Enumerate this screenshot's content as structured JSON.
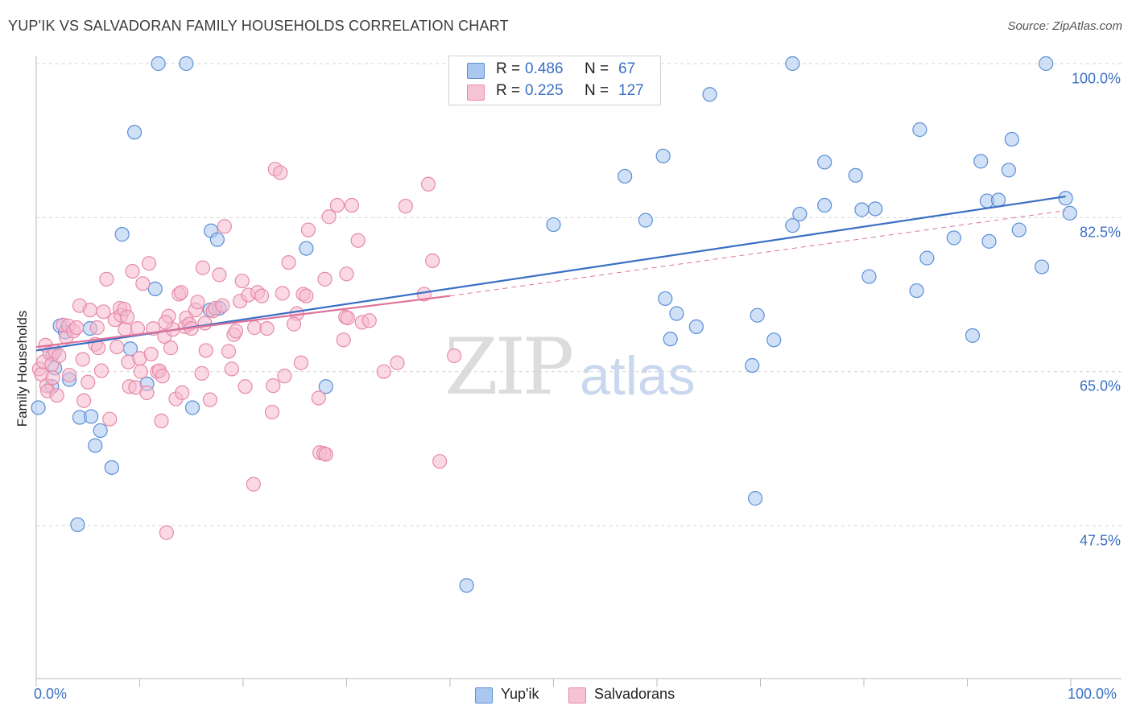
{
  "title": "YUP'IK VS SALVADORAN FAMILY HOUSEHOLDS CORRELATION CHART",
  "source": "Source: ZipAtlas.com",
  "watermark": {
    "zip": "ZIP",
    "atlas": "atlas"
  },
  "colors": {
    "blue_fill": "#a9c7ef",
    "blue_stroke": "#5b8fd6",
    "blue_line": "#3a70c4",
    "pink_fill": "#f6b9cd",
    "pink_stroke": "#e68aa8",
    "pink_line": "#e0729a",
    "grid": "#d5d5d5",
    "tick_text": "#3a70c4"
  },
  "legend": {
    "rows": [
      {
        "r_label": "R =",
        "r_value": "0.486",
        "n_label": "N =",
        "n_value": "67"
      },
      {
        "r_label": "R =",
        "r_value": "0.225",
        "n_label": "N =",
        "n_value": "127"
      }
    ]
  },
  "bottom_legend": {
    "items": [
      "Yup'ik",
      "Salvadorans"
    ]
  },
  "chart_data": {
    "type": "scatter",
    "title": "YUP'IK VS SALVADORAN FAMILY HOUSEHOLDS CORRELATION CHART",
    "xlabel": "",
    "ylabel": "Family Households",
    "xlim": [
      0,
      100
    ],
    "ylim": [
      32,
      104
    ],
    "x_tick_labels": [
      "0.0%",
      "100.0%"
    ],
    "y_ticks": [
      47.5,
      65.0,
      82.5,
      100.0
    ],
    "y_tick_labels": [
      "47.5%",
      "65.0%",
      "82.5%",
      "100.0%"
    ],
    "grid": true,
    "legend_position": "top-center",
    "series": [
      {
        "name": "Yup'ik",
        "r": 0.486,
        "n": 67,
        "trend": {
          "x": [
            0,
            99.5
          ],
          "y": [
            67.4,
            84.9
          ]
        },
        "points": [
          [
            0.2,
            60.9
          ],
          [
            1.5,
            63.3
          ],
          [
            1.6,
            67.0
          ],
          [
            1.8,
            65.4
          ],
          [
            2.3,
            70.2
          ],
          [
            2.8,
            69.5
          ],
          [
            3.2,
            64.1
          ],
          [
            4.0,
            47.6
          ],
          [
            4.2,
            59.8
          ],
          [
            5.2,
            69.9
          ],
          [
            5.3,
            59.9
          ],
          [
            5.7,
            56.6
          ],
          [
            6.2,
            58.3
          ],
          [
            7.3,
            54.1
          ],
          [
            8.3,
            80.6
          ],
          [
            9.1,
            67.6
          ],
          [
            9.5,
            92.2
          ],
          [
            10.7,
            63.6
          ],
          [
            11.5,
            74.4
          ],
          [
            11.8,
            100.0
          ],
          [
            14.5,
            100.0
          ],
          [
            15.1,
            60.9
          ],
          [
            16.8,
            72.0
          ],
          [
            16.9,
            81.0
          ],
          [
            17.5,
            80.0
          ],
          [
            17.7,
            72.2
          ],
          [
            26.1,
            79.0
          ],
          [
            28.0,
            63.3
          ],
          [
            41.6,
            40.7
          ],
          [
            50.0,
            81.7
          ],
          [
            56.9,
            87.2
          ],
          [
            58.9,
            82.2
          ],
          [
            60.6,
            89.5
          ],
          [
            60.8,
            73.3
          ],
          [
            61.3,
            68.7
          ],
          [
            61.9,
            71.6
          ],
          [
            63.8,
            70.1
          ],
          [
            65.1,
            96.5
          ],
          [
            69.2,
            65.7
          ],
          [
            69.5,
            50.6
          ],
          [
            69.7,
            71.4
          ],
          [
            71.3,
            68.6
          ],
          [
            73.1,
            100.0
          ],
          [
            73.1,
            81.6
          ],
          [
            73.8,
            82.9
          ],
          [
            76.2,
            88.8
          ],
          [
            76.2,
            83.9
          ],
          [
            79.2,
            87.3
          ],
          [
            79.8,
            83.4
          ],
          [
            80.5,
            75.8
          ],
          [
            81.1,
            83.5
          ],
          [
            85.1,
            74.2
          ],
          [
            85.4,
            92.5
          ],
          [
            86.1,
            77.9
          ],
          [
            88.7,
            80.2
          ],
          [
            90.5,
            69.1
          ],
          [
            91.3,
            88.9
          ],
          [
            91.9,
            84.4
          ],
          [
            92.1,
            79.8
          ],
          [
            93.0,
            84.5
          ],
          [
            94.0,
            87.9
          ],
          [
            94.3,
            91.4
          ],
          [
            95.0,
            81.1
          ],
          [
            97.2,
            76.9
          ],
          [
            97.6,
            100.0
          ],
          [
            99.5,
            84.7
          ],
          [
            99.9,
            83.0
          ]
        ]
      },
      {
        "name": "Salvadorans",
        "r": 0.225,
        "n": 127,
        "trend": {
          "x": [
            0,
            40
          ],
          "y": [
            67.8,
            73.6
          ]
        },
        "trend_dashed": {
          "x": [
            40,
            99.5
          ],
          "y": [
            73.6,
            83.3
          ]
        },
        "points": [
          [
            0.3,
            65.3
          ],
          [
            0.5,
            64.7
          ],
          [
            0.7,
            66.1
          ],
          [
            0.9,
            68.0
          ],
          [
            1.0,
            63.4
          ],
          [
            1.1,
            62.8
          ],
          [
            1.3,
            67.1
          ],
          [
            1.5,
            65.8
          ],
          [
            1.6,
            64.3
          ],
          [
            1.8,
            67.3
          ],
          [
            2.0,
            62.3
          ],
          [
            2.2,
            66.8
          ],
          [
            2.6,
            70.3
          ],
          [
            2.9,
            68.9
          ],
          [
            3.1,
            70.2
          ],
          [
            3.2,
            64.6
          ],
          [
            3.6,
            69.6
          ],
          [
            3.9,
            70.0
          ],
          [
            4.2,
            72.5
          ],
          [
            4.5,
            66.4
          ],
          [
            4.6,
            61.7
          ],
          [
            5.0,
            63.8
          ],
          [
            5.2,
            72.0
          ],
          [
            5.7,
            68.1
          ],
          [
            5.9,
            70.0
          ],
          [
            6.0,
            67.7
          ],
          [
            6.3,
            65.1
          ],
          [
            6.5,
            71.8
          ],
          [
            6.8,
            75.5
          ],
          [
            7.1,
            59.6
          ],
          [
            7.6,
            70.9
          ],
          [
            7.8,
            67.8
          ],
          [
            8.1,
            72.2
          ],
          [
            8.2,
            71.4
          ],
          [
            8.5,
            72.1
          ],
          [
            8.6,
            69.8
          ],
          [
            8.8,
            71.2
          ],
          [
            8.9,
            66.1
          ],
          [
            9.0,
            63.3
          ],
          [
            9.3,
            76.4
          ],
          [
            9.6,
            63.2
          ],
          [
            9.8,
            69.9
          ],
          [
            10.0,
            66.5
          ],
          [
            10.1,
            65.0
          ],
          [
            10.3,
            75.0
          ],
          [
            10.7,
            62.6
          ],
          [
            10.9,
            77.3
          ],
          [
            11.1,
            67.0
          ],
          [
            11.3,
            69.9
          ],
          [
            11.7,
            65.0
          ],
          [
            11.9,
            65.1
          ],
          [
            12.1,
            59.4
          ],
          [
            12.2,
            64.5
          ],
          [
            12.4,
            69.0
          ],
          [
            12.8,
            71.3
          ],
          [
            13.0,
            67.7
          ],
          [
            13.2,
            69.8
          ],
          [
            13.5,
            61.9
          ],
          [
            13.8,
            73.8
          ],
          [
            14.1,
            62.6
          ],
          [
            14.4,
            70.1
          ],
          [
            14.5,
            71.1
          ],
          [
            14.8,
            70.4
          ],
          [
            15.0,
            69.9
          ],
          [
            15.4,
            72.0
          ],
          [
            15.6,
            72.9
          ],
          [
            16.0,
            64.8
          ],
          [
            16.1,
            76.8
          ],
          [
            16.3,
            70.5
          ],
          [
            16.4,
            67.4
          ],
          [
            16.8,
            61.8
          ],
          [
            17.1,
            71.9
          ],
          [
            17.3,
            72.2
          ],
          [
            17.7,
            76.0
          ],
          [
            18.0,
            72.5
          ],
          [
            18.2,
            81.5
          ],
          [
            18.6,
            67.3
          ],
          [
            18.9,
            65.3
          ],
          [
            19.1,
            69.2
          ],
          [
            19.3,
            69.6
          ],
          [
            19.7,
            73.0
          ],
          [
            19.9,
            75.3
          ],
          [
            20.2,
            63.3
          ],
          [
            20.5,
            73.7
          ],
          [
            21.0,
            52.2
          ],
          [
            21.1,
            70.0
          ],
          [
            21.4,
            74.0
          ],
          [
            21.8,
            73.6
          ],
          [
            22.3,
            69.9
          ],
          [
            22.8,
            60.4
          ],
          [
            22.9,
            63.4
          ],
          [
            23.1,
            88.0
          ],
          [
            23.6,
            87.6
          ],
          [
            23.8,
            73.9
          ],
          [
            24.0,
            64.5
          ],
          [
            24.4,
            77.4
          ],
          [
            25.2,
            71.6
          ],
          [
            25.6,
            66.0
          ],
          [
            25.8,
            73.8
          ],
          [
            26.1,
            73.6
          ],
          [
            26.3,
            81.1
          ],
          [
            27.3,
            62.0
          ],
          [
            27.4,
            55.8
          ],
          [
            27.8,
            55.7
          ],
          [
            27.9,
            75.5
          ],
          [
            28.0,
            55.6
          ],
          [
            28.3,
            82.6
          ],
          [
            29.1,
            83.9
          ],
          [
            29.7,
            68.6
          ],
          [
            29.9,
            71.2
          ],
          [
            30.1,
            71.1
          ],
          [
            30.5,
            83.9
          ],
          [
            31.1,
            79.9
          ],
          [
            31.5,
            70.6
          ],
          [
            32.2,
            70.8
          ],
          [
            33.6,
            65.0
          ],
          [
            34.9,
            66.0
          ],
          [
            35.7,
            83.8
          ],
          [
            37.5,
            73.8
          ],
          [
            37.9,
            86.3
          ],
          [
            38.3,
            77.6
          ],
          [
            39.0,
            54.8
          ],
          [
            40.4,
            66.8
          ],
          [
            12.6,
            46.7
          ],
          [
            12.5,
            70.6
          ],
          [
            14.0,
            74.0
          ],
          [
            24.9,
            70.4
          ],
          [
            30.0,
            76.1
          ]
        ]
      }
    ]
  }
}
